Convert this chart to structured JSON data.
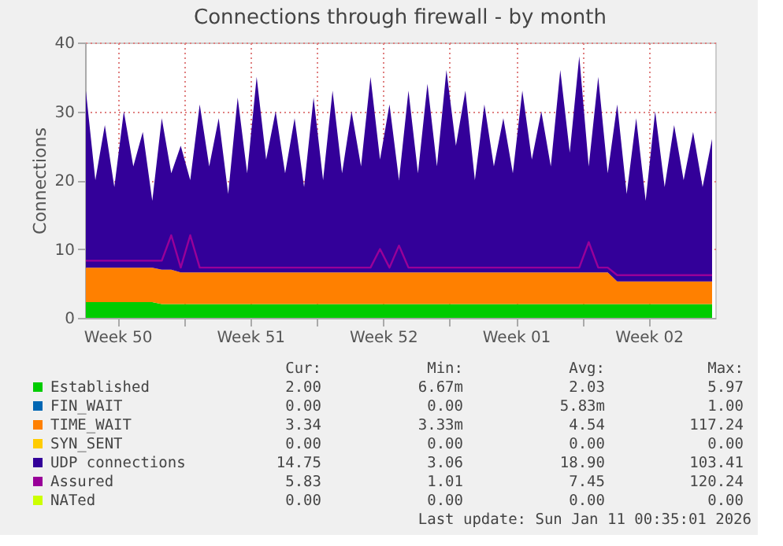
{
  "chart_data": {
    "type": "area",
    "title": "Connections through firewall - by month",
    "ylabel": "Connections",
    "stacked": true,
    "grid": true,
    "legend": "bottom",
    "x": [
      "2025-12-09T20:00",
      "2025-12-10T08:00",
      "2025-12-10T20:00",
      "2025-12-11T08:00",
      "2025-12-11T20:00",
      "2025-12-12T08:00",
      "2025-12-12T20:00",
      "2025-12-13T08:00",
      "2025-12-13T20:00",
      "2025-12-14T08:00",
      "2025-12-14T20:00",
      "2025-12-15T08:00",
      "2025-12-15T20:00",
      "2025-12-16T08:00",
      "2025-12-16T20:00",
      "2025-12-17T08:00",
      "2025-12-17T20:00",
      "2025-12-18T08:00",
      "2025-12-18T20:00",
      "2025-12-19T08:00",
      "2025-12-19T20:00",
      "2025-12-20T08:00",
      "2025-12-20T20:00",
      "2025-12-21T08:00",
      "2025-12-21T20:00",
      "2025-12-22T08:00",
      "2025-12-22T20:00",
      "2025-12-23T08:00",
      "2025-12-23T20:00",
      "2025-12-24T08:00",
      "2025-12-24T20:00",
      "2025-12-25T08:00",
      "2025-12-25T20:00",
      "2025-12-26T08:00",
      "2025-12-26T20:00",
      "2025-12-27T08:00",
      "2025-12-27T20:00",
      "2025-12-28T08:00",
      "2025-12-28T20:00",
      "2025-12-29T08:00",
      "2025-12-29T20:00",
      "2025-12-30T08:00",
      "2025-12-30T20:00",
      "2025-12-31T08:00",
      "2025-12-31T20:00",
      "2026-01-01T08:00",
      "2026-01-01T20:00",
      "2026-01-02T08:00",
      "2026-01-02T20:00",
      "2026-01-03T08:00",
      "2026-01-03T20:00",
      "2026-01-04T08:00",
      "2026-01-04T20:00",
      "2026-01-05T08:00",
      "2026-01-05T20:00",
      "2026-01-06T08:00",
      "2026-01-06T20:00",
      "2026-01-07T08:00",
      "2026-01-07T20:00",
      "2026-01-08T08:00",
      "2026-01-08T20:00",
      "2026-01-09T08:00",
      "2026-01-09T20:00",
      "2026-01-10T08:00",
      "2026-01-10T20:00",
      "2026-01-11T08:00",
      "2026-01-11T20:00"
    ],
    "xlim": [
      "2025-12-09T19:00",
      "2026-01-12T00:00"
    ],
    "xticks": [
      {
        "value": "2025-12-11T12:00",
        "label": "Week 50"
      },
      {
        "value": "2025-12-15T00:00",
        "label": null
      },
      {
        "value": "2025-12-18T12:00",
        "label": "Week 51"
      },
      {
        "value": "2025-12-22T00:00",
        "label": null
      },
      {
        "value": "2025-12-25T12:00",
        "label": "Week 52"
      },
      {
        "value": "2025-12-29T00:00",
        "label": null
      },
      {
        "value": "2026-01-01T12:00",
        "label": "Week 01"
      },
      {
        "value": "2026-01-05T00:00",
        "label": null
      },
      {
        "value": "2026-01-08T12:00",
        "label": "Week 02"
      }
    ],
    "ylim": [
      0,
      40
    ],
    "yticks": [
      0,
      10,
      20,
      30,
      40
    ],
    "series": [
      {
        "name": "Established",
        "color": "#00cc00",
        "values": [
          2.3,
          2.3,
          2.3,
          2.3,
          2.3,
          2.3,
          2.3,
          2.3,
          2.0,
          2.0,
          2.0,
          2.0,
          2.0,
          2.0,
          2.0,
          2.0,
          2.0,
          2.0,
          2.0,
          2.0,
          2.0,
          2.0,
          2.0,
          2.0,
          2.0,
          2.0,
          2.0,
          2.0,
          2.0,
          2.0,
          2.0,
          2.0,
          2.0,
          2.0,
          2.0,
          2.0,
          2.0,
          2.0,
          2.0,
          2.0,
          2.0,
          2.0,
          2.0,
          2.0,
          2.0,
          2.0,
          2.0,
          2.0,
          2.0,
          2.0,
          2.0,
          2.0,
          2.0,
          2.0,
          2.0,
          2.0,
          2.0,
          2.0,
          2.0,
          2.0,
          2.0,
          2.0,
          2.0,
          2.0,
          2.0,
          2.0,
          2.0
        ]
      },
      {
        "name": "FIN_WAIT",
        "color": "#0066b3",
        "type": "line",
        "line_style": "solid",
        "values": [
          null,
          null,
          null,
          null,
          null,
          null,
          null,
          null,
          null,
          null,
          null,
          null,
          null,
          null,
          null,
          null,
          null,
          null,
          null,
          null,
          null,
          null,
          null,
          null,
          null,
          null,
          null,
          null,
          null,
          null,
          null,
          null,
          null,
          null,
          null,
          null,
          null,
          null,
          null,
          null,
          null,
          null,
          null,
          null,
          null,
          null,
          null,
          null,
          null,
          null,
          null,
          null,
          null,
          null,
          null,
          null,
          null,
          null,
          null,
          null,
          null,
          null,
          null,
          null,
          null,
          null,
          null
        ]
      },
      {
        "name": "TIME_WAIT",
        "color": "#ff8000",
        "values": [
          5.0,
          5.0,
          5.0,
          5.0,
          5.0,
          5.0,
          5.0,
          5.0,
          5.0,
          5.0,
          4.6,
          4.6,
          4.6,
          4.6,
          4.6,
          4.6,
          4.6,
          4.6,
          4.6,
          4.6,
          4.6,
          4.6,
          4.6,
          4.6,
          4.6,
          4.6,
          4.6,
          4.6,
          4.6,
          4.6,
          4.6,
          4.6,
          4.6,
          4.6,
          4.6,
          4.6,
          4.6,
          4.6,
          4.6,
          4.6,
          4.6,
          4.6,
          4.6,
          4.6,
          4.6,
          4.6,
          4.6,
          4.6,
          4.6,
          4.6,
          4.6,
          4.6,
          4.6,
          4.6,
          4.6,
          4.6,
          3.3,
          3.3,
          3.3,
          3.3,
          3.3,
          3.3,
          3.3,
          3.3,
          3.3,
          3.3,
          3.3
        ]
      },
      {
        "name": "SYN_SENT",
        "color": "#ffcc00",
        "type": "line",
        "line_style": "solid",
        "values": [
          null,
          null,
          null,
          null,
          null,
          null,
          null,
          null,
          null,
          null,
          null,
          null,
          null,
          null,
          null,
          null,
          null,
          null,
          null,
          null,
          null,
          null,
          null,
          null,
          null,
          null,
          null,
          null,
          null,
          null,
          null,
          null,
          null,
          null,
          null,
          null,
          null,
          null,
          null,
          null,
          null,
          null,
          null,
          null,
          null,
          null,
          null,
          null,
          null,
          null,
          null,
          null,
          null,
          null,
          null,
          null,
          null,
          null,
          null,
          null,
          null,
          null,
          null,
          null,
          null,
          null,
          null
        ]
      },
      {
        "name": "UDP connections",
        "color": "#330099",
        "values": [
          25.7,
          12.7,
          20.7,
          11.7,
          22.7,
          14.7,
          19.7,
          9.7,
          22.0,
          14.0,
          18.4,
          13.4,
          24.4,
          15.4,
          22.4,
          11.4,
          25.4,
          14.4,
          28.4,
          16.4,
          23.4,
          14.4,
          22.4,
          12.4,
          25.4,
          13.4,
          26.4,
          14.4,
          23.4,
          15.4,
          28.4,
          16.4,
          24.4,
          13.4,
          26.4,
          14.4,
          27.4,
          15.4,
          29.4,
          18.4,
          26.4,
          13.4,
          24.4,
          15.4,
          22.4,
          14.4,
          26.4,
          16.4,
          23.4,
          15.4,
          29.4,
          17.4,
          31.4,
          15.4,
          28.4,
          14.4,
          25.7,
          12.7,
          23.7,
          11.7,
          24.7,
          13.7,
          22.7,
          14.7,
          21.7,
          13.7,
          20.7
        ]
      },
      {
        "name": "Assured",
        "color": "#990099",
        "type": "line",
        "line_style": "solid",
        "values": [
          8.3,
          8.3,
          8.3,
          8.3,
          8.3,
          8.3,
          8.3,
          8.3,
          8.3,
          12.0,
          7.3,
          12.0,
          7.3,
          7.3,
          7.3,
          7.3,
          7.3,
          7.3,
          7.3,
          7.3,
          7.3,
          7.3,
          7.3,
          7.3,
          7.3,
          7.3,
          7.3,
          7.3,
          7.3,
          7.3,
          7.3,
          10.0,
          7.3,
          10.5,
          7.3,
          7.3,
          7.3,
          7.3,
          7.3,
          7.3,
          7.3,
          7.3,
          7.3,
          7.3,
          7.3,
          7.3,
          7.3,
          7.3,
          7.3,
          7.3,
          7.3,
          7.3,
          7.3,
          11.0,
          7.3,
          7.3,
          6.2,
          6.2,
          6.2,
          6.2,
          6.2,
          6.2,
          6.2,
          6.2,
          6.2,
          6.2,
          6.2
        ]
      },
      {
        "name": "NATed",
        "color": "#ccff00",
        "type": "line",
        "line_style": "solid",
        "values": [
          null,
          null,
          null,
          null,
          null,
          null,
          null,
          null,
          null,
          null,
          null,
          null,
          null,
          null,
          null,
          null,
          null,
          null,
          null,
          null,
          null,
          null,
          null,
          null,
          null,
          null,
          null,
          null,
          null,
          null,
          null,
          null,
          null,
          null,
          null,
          null,
          null,
          null,
          null,
          null,
          null,
          null,
          null,
          null,
          null,
          null,
          null,
          null,
          null,
          null,
          null,
          null,
          null,
          null,
          null,
          null,
          null,
          null,
          null,
          null,
          null,
          null,
          null,
          null,
          null,
          null,
          null
        ]
      }
    ],
    "annotations": [
      "Cur:",
      "Min:",
      "Avg:",
      "Max:",
      "2.00",
      "6.67m",
      "2.03",
      "5.97",
      "0.00",
      "0.00",
      "5.83m",
      "1.00",
      "3.34",
      "3.33m",
      "4.54",
      "117.24",
      "0.00",
      "0.00",
      "0.00",
      "0.00",
      "14.75",
      "3.06",
      "18.90",
      "103.41",
      "5.83",
      "1.01",
      "7.45",
      "120.24",
      "0.00",
      "0.00",
      "0.00",
      "0.00",
      "Last update: Sun Jan 11 00:35:01 2026"
    ]
  }
}
